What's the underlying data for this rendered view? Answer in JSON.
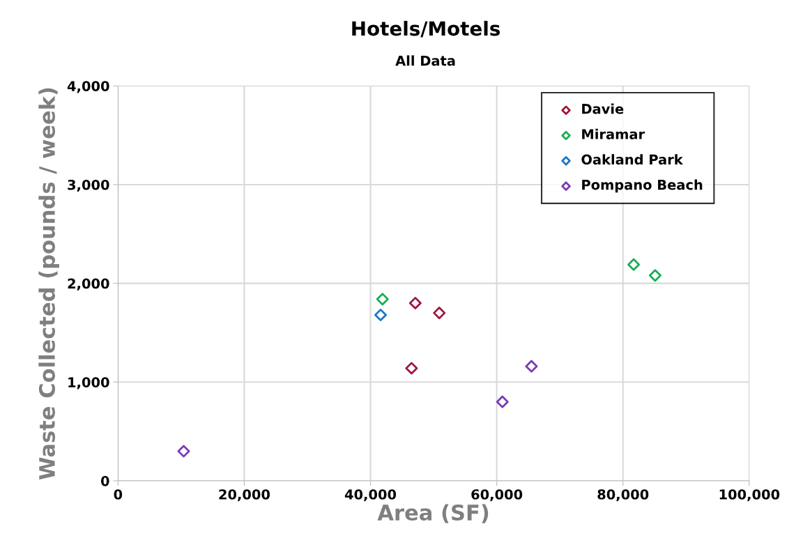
{
  "chart_data": {
    "type": "scatter",
    "title": "Hotels/Motels",
    "subtitle": "All Data",
    "xlabel": "Area (SF)",
    "ylabel": "Waste Collected (pounds / week)",
    "xlim": [
      0,
      100000
    ],
    "xticks": [
      {
        "value": 0,
        "label": "0"
      },
      {
        "value": 20000,
        "label": "20,000"
      },
      {
        "value": 40000,
        "label": "40,000"
      },
      {
        "value": 60000,
        "label": "60,000"
      },
      {
        "value": 80000,
        "label": "80,000"
      },
      {
        "value": 100000,
        "label": "100,000"
      }
    ],
    "ylim": [
      0,
      4000
    ],
    "yticks": [
      {
        "value": 0,
        "label": "0"
      },
      {
        "value": 1000,
        "label": "1,000"
      },
      {
        "value": 2000,
        "label": "2,000"
      },
      {
        "value": 3000,
        "label": "3,000"
      },
      {
        "value": 4000,
        "label": "4,000"
      }
    ],
    "grid": true,
    "legend": "top right",
    "marker": "diamond",
    "series": [
      {
        "name": "Davie",
        "color": "#a0163a",
        "x": [
          47100,
          50900,
          46500
        ],
        "values": [
          1800,
          1700,
          1140
        ]
      },
      {
        "name": "Miramar",
        "color": "#1aae52",
        "x": [
          41900,
          81700,
          85100
        ],
        "values": [
          1840,
          2190,
          2080
        ]
      },
      {
        "name": "Oakland Park",
        "color": "#1a78c8",
        "x": [
          41600
        ],
        "values": [
          1680
        ]
      },
      {
        "name": "Pompano Beach",
        "color": "#7b3bb5",
        "x": [
          10400,
          60900,
          65500
        ],
        "values": [
          300,
          800,
          1160
        ]
      }
    ]
  }
}
